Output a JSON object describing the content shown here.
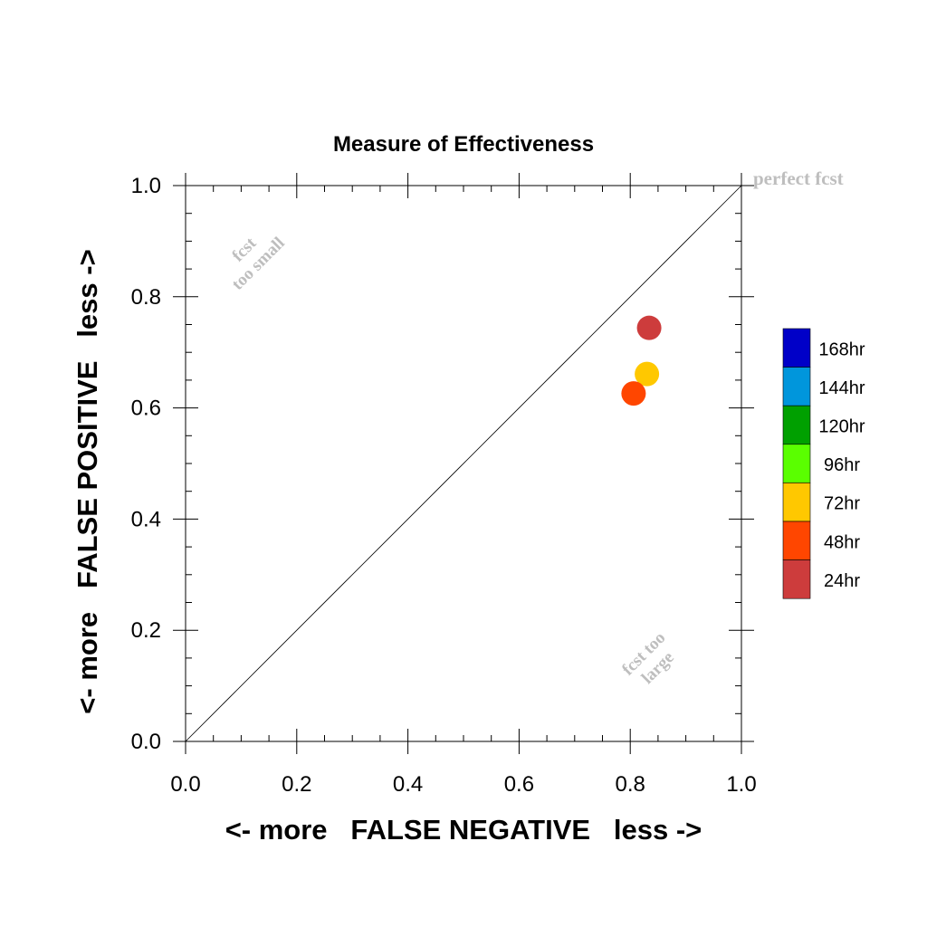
{
  "chart_data": {
    "type": "scatter",
    "title": "Measure of Effectiveness",
    "xlabel": "<- more   FALSE NEGATIVE   less ->",
    "ylabel": "<- more   FALSE POSITIVE   less ->",
    "xlim": [
      0,
      1
    ],
    "ylim": [
      0,
      1
    ],
    "x_ticks": [
      "0.0",
      "0.2",
      "0.4",
      "0.6",
      "0.8",
      "1.0"
    ],
    "y_ticks": [
      "0.0",
      "0.2",
      "0.4",
      "0.6",
      "0.8",
      "1.0"
    ],
    "grid": false,
    "reference_line": {
      "from": [
        0,
        0
      ],
      "to": [
        1,
        1
      ]
    },
    "annotations": {
      "perfect": "perfect fcst",
      "too_small_line1": "fcst",
      "too_small_line2": "too small",
      "too_large_line1": "fcst too",
      "too_large_line2": "large"
    },
    "legend": {
      "placement": "right",
      "entries": [
        {
          "label": "168hr",
          "color": "#0000c8"
        },
        {
          "label": "144hr",
          "color": "#0096dc"
        },
        {
          "label": "120hr",
          "color": "#00a000"
        },
        {
          "label": "96hr",
          "color": "#5aff00"
        },
        {
          "label": "72hr",
          "color": "#ffc800"
        },
        {
          "label": "48hr",
          "color": "#ff4600"
        },
        {
          "label": "24hr",
          "color": "#cd3c3c"
        }
      ]
    },
    "points": [
      {
        "label": "24hr",
        "x": 0.834,
        "y": 0.744,
        "color": "#cd3c3c"
      },
      {
        "label": "72hr",
        "x": 0.83,
        "y": 0.661,
        "color": "#ffc800"
      },
      {
        "label": "48hr",
        "x": 0.806,
        "y": 0.626,
        "color": "#ff4600"
      }
    ]
  }
}
